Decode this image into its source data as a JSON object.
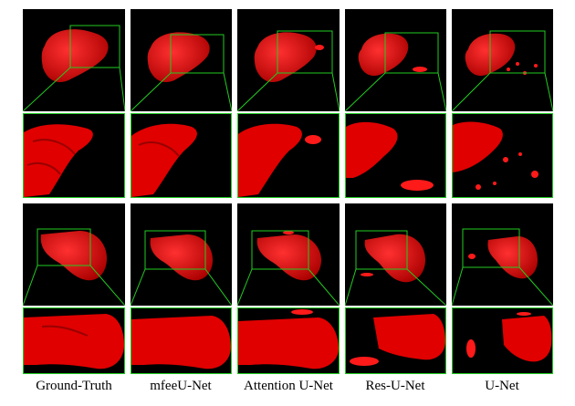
{
  "captions": [
    "Ground-Truth",
    "mfeeU-Net",
    "Attention U-Net",
    "Res-U-Net",
    "U-Net"
  ],
  "colors": {
    "organ": "#ff0000",
    "organ_dark": "#b30000",
    "zoom_box": "#22cc22",
    "background": "#000000"
  }
}
